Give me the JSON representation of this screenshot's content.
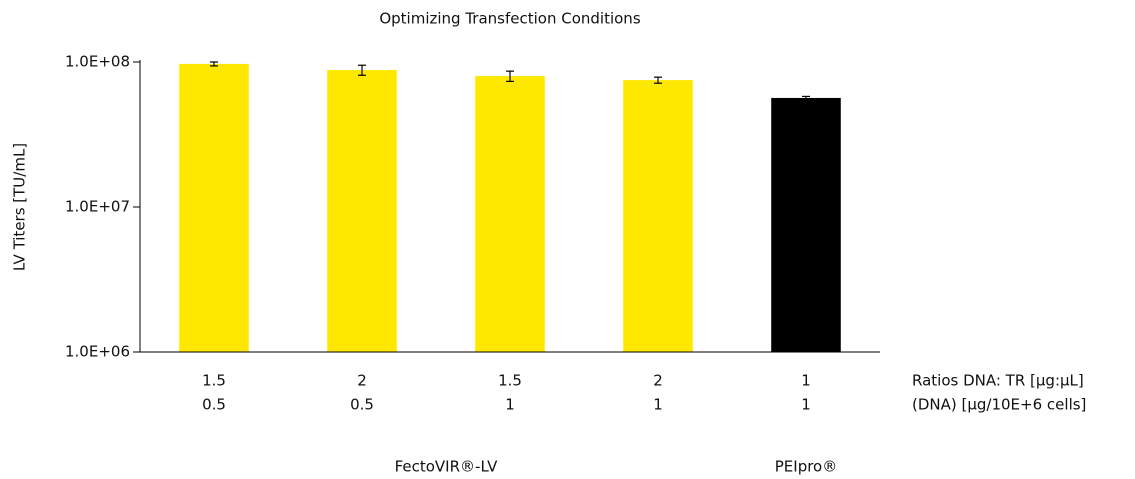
{
  "chart_data": {
    "type": "bar",
    "title": "Optimizing Transfection Conditions",
    "ylabel": "LV Titers [TU/mL]",
    "log_y": true,
    "ylim": [
      1000000,
      100000000
    ],
    "yticks": [
      {
        "value": 1000000,
        "label": "1.0E+06"
      },
      {
        "value": 10000000,
        "label": "1.0E+07"
      },
      {
        "value": 100000000,
        "label": "1.0E+08"
      }
    ],
    "category_rows": [
      {
        "label": "Ratios DNA: TR [µg:µL]",
        "values": [
          "1.5",
          "2",
          "1.5",
          "2",
          "1"
        ]
      },
      {
        "label": "(DNA) [µg/10E+6 cells]",
        "values": [
          "0.5",
          "0.5",
          "1",
          "1",
          "1"
        ]
      }
    ],
    "groups": [
      {
        "name": "FectoVIR®-LV",
        "color": "#ffe800",
        "bars": 4
      },
      {
        "name": "PEIpro®",
        "color": "#000000",
        "bars": 1
      }
    ],
    "series": [
      {
        "values": [
          97000000,
          88000000,
          80000000,
          75000000,
          56500000
        ],
        "errors": [
          3000000,
          7000000,
          6500000,
          3600000,
          1400000
        ]
      }
    ]
  }
}
